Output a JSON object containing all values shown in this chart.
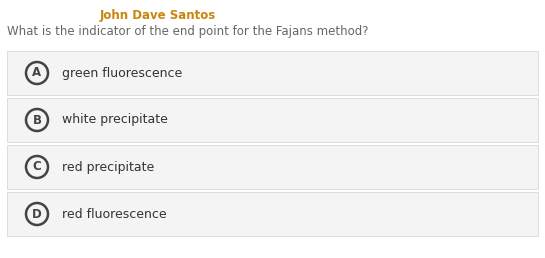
{
  "author": "John Dave Santos",
  "author_color": "#c8860a",
  "question": "What is the indicator of the end point for the Fajans method?",
  "question_color": "#666666",
  "options": [
    "green fluorescence",
    "white precipitate",
    "red precipitate",
    "red fluorescence"
  ],
  "option_labels": [
    "A",
    "B",
    "C",
    "D"
  ],
  "background_color": "#ffffff",
  "option_bg_color": "#f4f4f4",
  "option_border_color": "#d8d8d8",
  "text_color": "#333333",
  "circle_edge_color": "#444444",
  "author_fontsize": 8.5,
  "question_fontsize": 8.5,
  "option_fontsize": 9.0,
  "label_fontsize": 8.5,
  "fig_width": 5.45,
  "fig_height": 2.58,
  "dpi": 100
}
